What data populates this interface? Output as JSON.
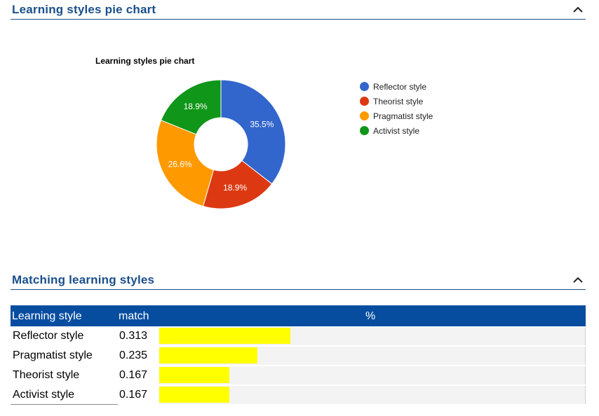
{
  "sections": {
    "pie": {
      "title": "Learning styles pie chart"
    },
    "matching": {
      "title": "Matching learning styles"
    }
  },
  "icons": {
    "collapse": "chevron-up-icon"
  },
  "chart_data": {
    "type": "pie",
    "donut": true,
    "title": "Learning styles pie chart",
    "legend_position": "right",
    "slices": [
      {
        "name": "Reflector style",
        "value": 35.5,
        "label": "35.5%",
        "color": "#3366cc"
      },
      {
        "name": "Theorist style",
        "value": 18.9,
        "label": "18.9%",
        "color": "#dc3912"
      },
      {
        "name": "Pragmatist style",
        "value": 26.6,
        "label": "26.6%",
        "color": "#ff9900"
      },
      {
        "name": "Activist style",
        "value": 18.9,
        "label": "18.9%",
        "color": "#109618"
      }
    ]
  },
  "table": {
    "headers": {
      "style": "Learning style",
      "match": "match",
      "percent": "%"
    },
    "max_match": 0.5,
    "rows": [
      {
        "style": "Reflector style",
        "match": "0.313",
        "value": 0.313
      },
      {
        "style": "Pragmatist style",
        "match": "0.235",
        "value": 0.235
      },
      {
        "style": "Theorist style",
        "match": "0.167",
        "value": 0.167
      },
      {
        "style": "Activist style",
        "match": "0.167",
        "value": 0.167
      }
    ]
  },
  "colors": {
    "header_text": "#1a4f8b",
    "table_header_bg": "#064da0",
    "bar": "#ffff00"
  }
}
